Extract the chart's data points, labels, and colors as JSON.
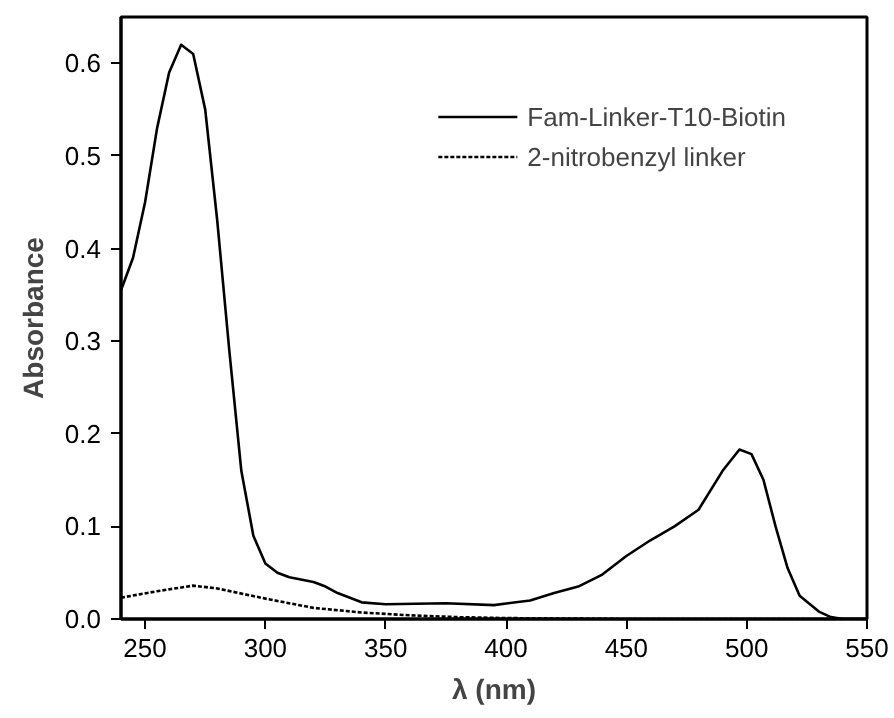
{
  "chart_data": {
    "type": "line",
    "xlabel": "λ (nm)",
    "ylabel": "Absorbance",
    "xlim": [
      240,
      550
    ],
    "ylim": [
      0,
      0.65
    ],
    "xticks": [
      250,
      300,
      350,
      400,
      450,
      500,
      550
    ],
    "yticks": [
      {
        "value": 0,
        "label": "0.0"
      },
      0.1,
      0.2,
      0.3,
      0.4,
      0.5,
      0.6
    ],
    "grid": false,
    "legend": "top right",
    "marker": "none",
    "series": [
      {
        "name": "Fam-Linker-T10-Biotin",
        "color": "#000000",
        "line_style": "solid",
        "x": [
          240,
          245,
          250,
          255,
          260,
          265,
          270,
          275,
          280,
          285,
          290,
          295,
          300,
          305,
          310,
          320,
          325,
          330,
          340,
          350,
          375,
          395,
          410,
          420,
          430,
          440,
          450,
          460,
          470,
          480,
          490,
          497,
          502,
          507,
          512,
          517,
          522,
          530,
          535,
          540,
          550
        ],
        "values": [
          0.355,
          0.39,
          0.45,
          0.53,
          0.59,
          0.62,
          0.61,
          0.55,
          0.43,
          0.29,
          0.16,
          0.09,
          0.06,
          0.05,
          0.045,
          0.04,
          0.035,
          0.028,
          0.018,
          0.016,
          0.017,
          0.015,
          0.02,
          0.028,
          0.035,
          0.048,
          0.068,
          0.085,
          0.1,
          0.118,
          0.16,
          0.183,
          0.178,
          0.15,
          0.1,
          0.055,
          0.025,
          0.008,
          0.002,
          0,
          0
        ]
      },
      {
        "name": "2-nitrobenzyl linker",
        "color": "#000000",
        "line_style": "dotted",
        "x": [
          240,
          255,
          270,
          280,
          300,
          320,
          340,
          360,
          380,
          400,
          450,
          550
        ],
        "values": [
          0.023,
          0.03,
          0.036,
          0.033,
          0.022,
          0.012,
          0.007,
          0.004,
          0.002,
          0.001,
          0,
          0
        ]
      }
    ]
  }
}
